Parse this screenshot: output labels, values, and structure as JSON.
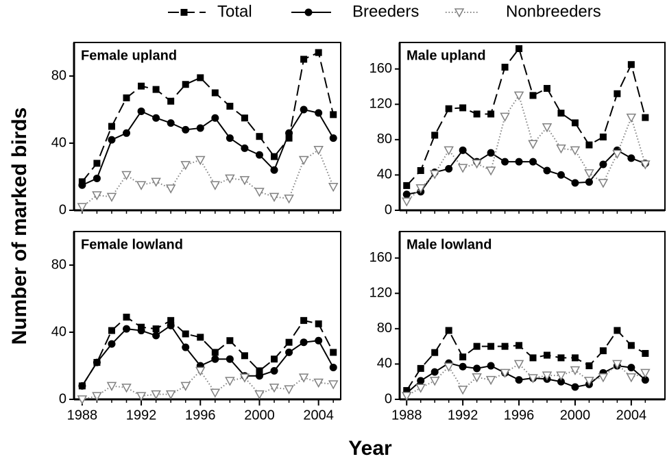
{
  "axis_labels": {
    "x": "Year",
    "y": "Number of marked birds"
  },
  "chart_data": [
    {
      "type": "line",
      "title": "Female upland",
      "x": [
        1988,
        1989,
        1990,
        1991,
        1992,
        1993,
        1994,
        1995,
        1996,
        1997,
        1998,
        1999,
        2000,
        2001,
        2002,
        2003,
        2004,
        2005
      ],
      "xlim": [
        1987.45,
        2005.5
      ],
      "ylim": [
        0,
        100
      ],
      "yticks": [
        0,
        40,
        80
      ],
      "series": [
        {
          "name": "Total",
          "color": "#000000",
          "dash": "dashed",
          "marker": "square",
          "values": [
            17,
            28,
            50,
            67,
            74,
            72,
            65,
            75,
            79,
            70,
            62,
            55,
            44,
            32,
            43,
            90,
            94,
            57
          ]
        },
        {
          "name": "Breeders",
          "color": "#000000",
          "dash": "solid",
          "marker": "circle",
          "values": [
            15,
            19,
            42,
            46,
            59,
            55,
            52,
            48,
            49,
            55,
            43,
            37,
            33,
            24,
            46,
            60,
            58,
            43
          ]
        },
        {
          "name": "Nonbreeders",
          "color": "#808080",
          "dash": "dotted",
          "marker": "triangle",
          "values": [
            2,
            9,
            8,
            21,
            15,
            17,
            13,
            27,
            30,
            15,
            19,
            18,
            11,
            8,
            7,
            30,
            36,
            14
          ]
        }
      ]
    },
    {
      "type": "line",
      "title": "Male upland",
      "x": [
        1988,
        1989,
        1990,
        1991,
        1992,
        1993,
        1994,
        1995,
        1996,
        1997,
        1998,
        1999,
        2000,
        2001,
        2002,
        2003,
        2004,
        2005
      ],
      "xlim": [
        1987.5,
        2006.4
      ],
      "ylim": [
        0,
        190
      ],
      "yticks": [
        0,
        40,
        80,
        120,
        160
      ],
      "series": [
        {
          "color": "#000000",
          "dash": "dashed",
          "marker": "square",
          "values": [
            28,
            45,
            85,
            115,
            116,
            109,
            109,
            162,
            183,
            130,
            138,
            110,
            99,
            74,
            83,
            132,
            165,
            105
          ]
        },
        {
          "color": "#000000",
          "dash": "solid",
          "marker": "circle",
          "values": [
            18,
            21,
            43,
            47,
            68,
            55,
            65,
            55,
            55,
            55,
            45,
            40,
            31,
            32,
            52,
            68,
            59,
            53
          ]
        },
        {
          "color": "#808080",
          "dash": "dotted",
          "marker": "triangle",
          "values": [
            10,
            25,
            41,
            68,
            48,
            53,
            45,
            106,
            130,
            75,
            94,
            70,
            68,
            42,
            31,
            64,
            105,
            52
          ]
        }
      ]
    },
    {
      "type": "line",
      "title": "Female lowland",
      "x": [
        1988,
        1989,
        1990,
        1991,
        1992,
        1993,
        1994,
        1995,
        1996,
        1997,
        1998,
        1999,
        2000,
        2001,
        2002,
        2003,
        2004,
        2005
      ],
      "xlim": [
        1987.45,
        2005.5
      ],
      "ylim": [
        0,
        100
      ],
      "yticks": [
        0,
        40,
        80
      ],
      "xticks": [
        1988,
        1992,
        1996,
        2000,
        2004
      ],
      "series": [
        {
          "color": "#000000",
          "dash": "dashed",
          "marker": "square",
          "values": [
            8,
            22,
            41,
            49,
            43,
            42,
            47,
            39,
            37,
            28,
            35,
            26,
            17,
            24,
            34,
            47,
            45,
            28
          ]
        },
        {
          "color": "#000000",
          "dash": "solid",
          "marker": "circle",
          "values": [
            8,
            22,
            33,
            42,
            41,
            38,
            44,
            31,
            20,
            24,
            24,
            14,
            14,
            17,
            28,
            34,
            35,
            19
          ]
        },
        {
          "color": "#808080",
          "dash": "dotted",
          "marker": "triangle",
          "values": [
            0,
            2,
            8,
            7,
            2,
            3,
            3,
            8,
            17,
            4,
            11,
            13,
            3,
            7,
            6,
            13,
            10,
            9
          ]
        }
      ]
    },
    {
      "type": "line",
      "title": "Male lowland",
      "x": [
        1988,
        1989,
        1990,
        1991,
        1992,
        1993,
        1994,
        1995,
        1996,
        1997,
        1998,
        1999,
        2000,
        2001,
        2002,
        2003,
        2004,
        2005
      ],
      "xlim": [
        1987.5,
        2006.4
      ],
      "ylim": [
        0,
        190
      ],
      "yticks": [
        0,
        40,
        80,
        120,
        160
      ],
      "xticks": [
        1988,
        1992,
        1996,
        2000,
        2004
      ],
      "series": [
        {
          "color": "#000000",
          "dash": "dashed",
          "marker": "square",
          "values": [
            10,
            35,
            53,
            78,
            48,
            60,
            60,
            60,
            61,
            47,
            50,
            47,
            47,
            38,
            55,
            78,
            61,
            52
          ]
        },
        {
          "color": "#000000",
          "dash": "solid",
          "marker": "circle",
          "values": [
            7,
            21,
            31,
            41,
            37,
            35,
            38,
            30,
            22,
            24,
            23,
            20,
            14,
            17,
            30,
            38,
            36,
            22
          ]
        },
        {
          "color": "#808080",
          "dash": "dotted",
          "marker": "triangle",
          "values": [
            4,
            13,
            21,
            37,
            11,
            25,
            22,
            30,
            40,
            24,
            27,
            27,
            33,
            21,
            25,
            40,
            25,
            30
          ]
        }
      ]
    }
  ]
}
